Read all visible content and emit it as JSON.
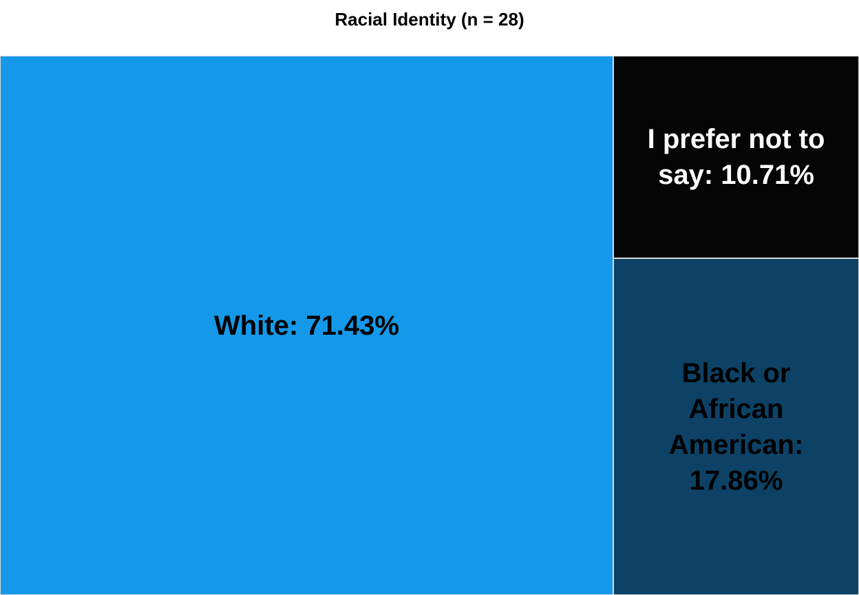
{
  "chart_data": {
    "type": "treemap",
    "title": "Racial Identity (n = 28)",
    "categories": [
      "White",
      "I prefer not to say",
      "Black or African American"
    ],
    "values": [
      71.43,
      10.71,
      17.86
    ],
    "unit": "%",
    "labels": [
      "White: 71.43%",
      "I prefer not to say: 10.71%",
      "Black or African American: 17.86%"
    ],
    "colors": [
      "#1499ea",
      "#050505",
      "#0d4266"
    ],
    "label_colors": [
      "#000000",
      "#ffffff",
      "#000000"
    ]
  }
}
